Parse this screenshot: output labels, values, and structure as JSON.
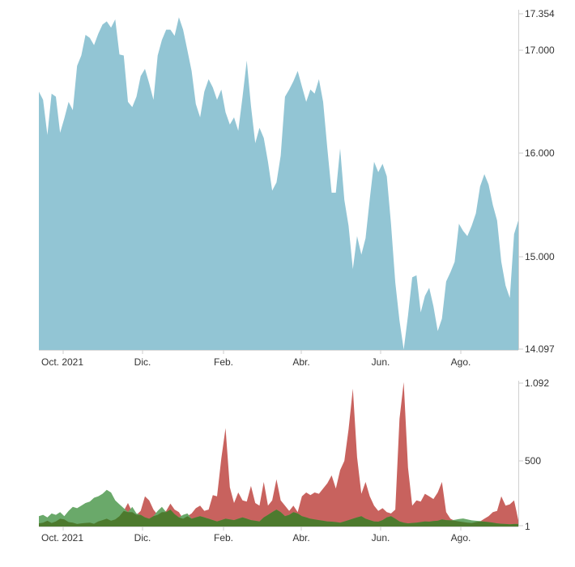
{
  "chart_data": [
    {
      "type": "area",
      "title": "",
      "x_tick_labels": [
        "Oct. 2021",
        "Dic.",
        "Feb.",
        "Abr.",
        "Jun.",
        "Ago."
      ],
      "y_tick_labels": [
        "17.354",
        "17.000",
        "16.000",
        "15.000",
        "14.097"
      ],
      "ylim": [
        14.097,
        17.354
      ],
      "grid": false,
      "colors": {
        "area": "#92c5d4"
      },
      "series": [
        {
          "values": [
            16.6,
            16.52,
            16.18,
            16.58,
            16.55,
            16.2,
            16.34,
            16.5,
            16.42,
            16.85,
            16.95,
            17.15,
            17.12,
            17.05,
            17.16,
            17.25,
            17.28,
            17.22,
            17.3,
            16.96,
            16.95,
            16.5,
            16.45,
            16.55,
            16.75,
            16.82,
            16.68,
            16.52,
            16.95,
            17.1,
            17.2,
            17.2,
            17.14,
            17.32,
            17.2,
            17.0,
            16.8,
            16.48,
            16.35,
            16.6,
            16.72,
            16.64,
            16.52,
            16.62,
            16.4,
            16.28,
            16.35,
            16.22,
            16.55,
            16.9,
            16.46,
            16.1,
            16.25,
            16.15,
            15.92,
            15.64,
            15.72,
            15.98,
            16.55,
            16.62,
            16.7,
            16.8,
            16.65,
            16.5,
            16.62,
            16.58,
            16.72,
            16.5,
            16.05,
            15.62,
            15.62,
            16.05,
            15.55,
            15.3,
            14.88,
            15.2,
            15.02,
            15.18,
            15.56,
            15.92,
            15.82,
            15.9,
            15.78,
            15.32,
            14.75,
            14.38,
            14.1,
            14.43,
            14.8,
            14.82,
            14.46,
            14.62,
            14.7,
            14.52,
            14.28,
            14.4,
            14.76,
            14.85,
            14.95,
            15.32,
            15.25,
            15.2,
            15.3,
            15.42,
            15.68,
            15.8,
            15.7,
            15.5,
            15.35,
            14.95,
            14.72,
            14.6,
            15.22,
            15.35
          ]
        }
      ]
    },
    {
      "type": "area",
      "title": "",
      "x_tick_labels": [
        "Oct. 2021",
        "Dic.",
        "Feb.",
        "Abr.",
        "Jun.",
        "Ago."
      ],
      "y_tick_labels": [
        "1.092",
        "500",
        "1"
      ],
      "ylim": [
        1,
        1092
      ],
      "grid": false,
      "colors": {
        "red": "#c8625e",
        "green": "#6aa96a",
        "overlap": "#4d7a2e"
      },
      "series": [
        {
          "color": "red",
          "values": [
            25,
            30,
            45,
            28,
            40,
            60,
            55,
            35,
            30,
            20,
            25,
            28,
            30,
            22,
            40,
            50,
            60,
            45,
            55,
            80,
            120,
            180,
            110,
            90,
            120,
            230,
            200,
            130,
            90,
            110,
            120,
            175,
            130,
            110,
            60,
            80,
            100,
            140,
            160,
            120,
            130,
            240,
            230,
            520,
            750,
            300,
            180,
            260,
            200,
            190,
            310,
            180,
            160,
            340,
            160,
            200,
            360,
            200,
            160,
            120,
            160,
            110,
            230,
            260,
            240,
            260,
            250,
            290,
            330,
            390,
            290,
            430,
            500,
            740,
            1050,
            530,
            250,
            340,
            230,
            160,
            120,
            140,
            110,
            100,
            130,
            820,
            1100,
            450,
            160,
            200,
            190,
            250,
            230,
            210,
            260,
            340,
            110,
            60,
            45,
            40,
            35,
            30,
            28,
            35,
            40,
            60,
            80,
            110,
            120,
            230,
            160,
            170,
            200,
            50
          ]
        },
        {
          "color": "green",
          "values": [
            80,
            90,
            70,
            100,
            90,
            110,
            80,
            120,
            150,
            140,
            160,
            180,
            190,
            220,
            230,
            250,
            280,
            260,
            200,
            170,
            140,
            110,
            150,
            100,
            90,
            70,
            60,
            80,
            120,
            150,
            110,
            130,
            95,
            70,
            90,
            100,
            60,
            70,
            80,
            70,
            60,
            50,
            40,
            50,
            60,
            55,
            50,
            60,
            70,
            60,
            50,
            45,
            40,
            70,
            90,
            110,
            130,
            110,
            80,
            90,
            110,
            100,
            80,
            70,
            60,
            55,
            50,
            45,
            40,
            38,
            35,
            30,
            40,
            50,
            60,
            70,
            80,
            60,
            50,
            40,
            38,
            50,
            70,
            80,
            60,
            40,
            30,
            25,
            28,
            30,
            35,
            40,
            38,
            42,
            45,
            55,
            50,
            48,
            52,
            58,
            62,
            55,
            48,
            45,
            42,
            38,
            35,
            30,
            25,
            22,
            20,
            18,
            20,
            20
          ]
        }
      ]
    }
  ]
}
